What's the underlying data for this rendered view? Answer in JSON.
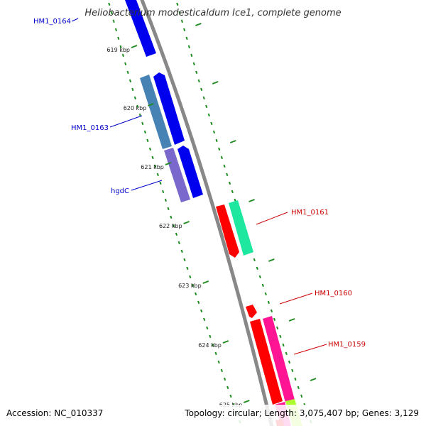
{
  "title": "Heliobacterium modesticaldum Ice1, complete genome",
  "footer": {
    "accession": "Accession: NC_010337",
    "summary": "Topology: circular; Length: 3,075,407 bp; Genes: 3,129"
  },
  "ticks": [
    "619 kbp",
    "620 kbp",
    "621 kbp",
    "622 kbp",
    "623 kbp",
    "624 kbp",
    "625 kbp"
  ],
  "genes": [
    {
      "label": "HM1_0164",
      "strand": "reverse"
    },
    {
      "label": "HM1_0163",
      "strand": "reverse"
    },
    {
      "label": "hgdC",
      "strand": "reverse"
    },
    {
      "label": "HM1_0161",
      "strand": "forward"
    },
    {
      "label": "HM1_0160",
      "strand": "forward"
    },
    {
      "label": "HM1_0159",
      "strand": "forward"
    }
  ],
  "colors": {
    "reverse_label": "#0000cc",
    "forward_label": "#cc0000",
    "tick": "#228b22",
    "backbone": "#888888",
    "cds_blue": "#0000ee",
    "steel_blue": "#4682b4",
    "slate_purple": "#7b68cc",
    "red": "#ff0000",
    "spring_green": "#1ee8a0",
    "deep_pink": "#ff1493",
    "lime": "#adff2f"
  }
}
